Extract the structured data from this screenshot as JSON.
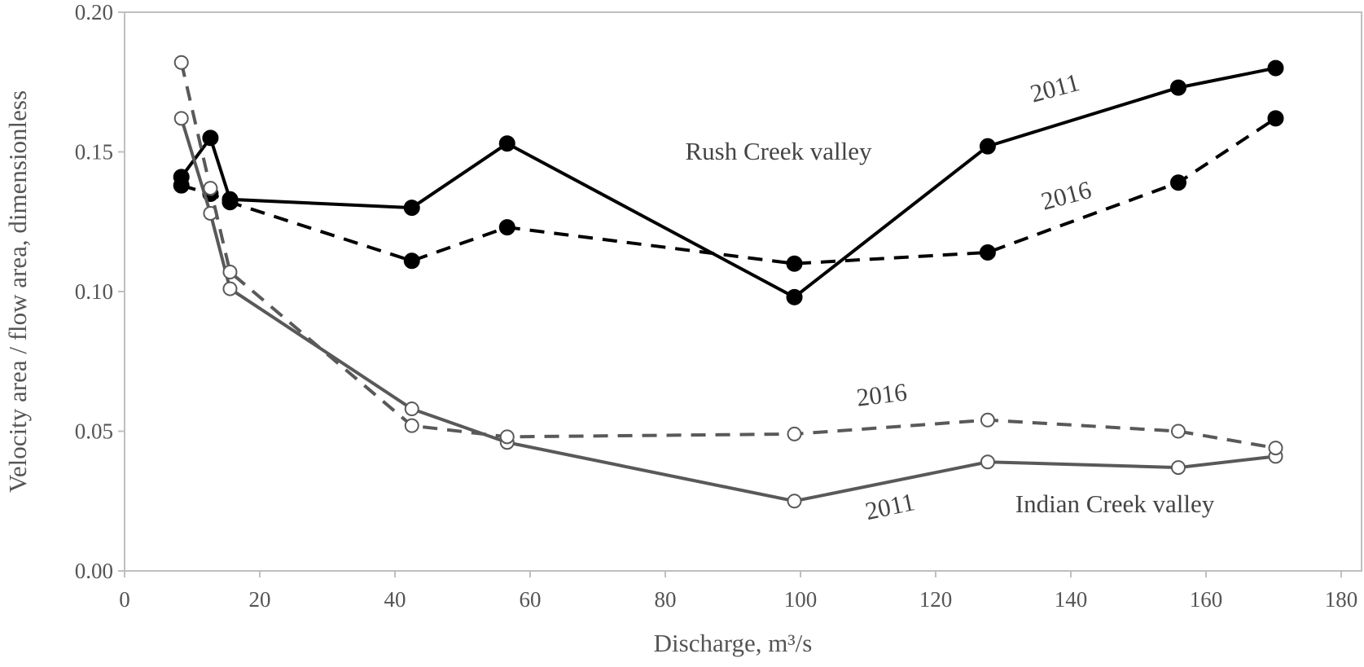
{
  "chart_data": {
    "type": "line",
    "x_label": "Discharge, m³/s",
    "y_label": "Velocity area / flow area, dimensionless",
    "x": [
      8.4,
      12.7,
      15.6,
      42.5,
      56.6,
      99.1,
      127.7,
      155.9,
      170.3
    ],
    "series": [
      {
        "color": "#000000",
        "dash": false,
        "marker": "filled",
        "values": [
          0.141,
          0.155,
          0.133,
          0.13,
          0.153,
          0.098,
          0.152,
          0.173,
          0.18
        ]
      },
      {
        "color": "#000000",
        "dash": true,
        "marker": "filled",
        "values": [
          0.138,
          0.135,
          0.132,
          0.111,
          0.123,
          0.11,
          0.114,
          0.139,
          0.162
        ]
      },
      {
        "color": "#595959",
        "dash": false,
        "marker": "open",
        "values": [
          0.162,
          0.128,
          0.101,
          0.058,
          0.046,
          0.025,
          0.039,
          0.037,
          0.041
        ]
      },
      {
        "color": "#595959",
        "dash": true,
        "marker": "open",
        "values": [
          0.182,
          0.137,
          0.107,
          0.052,
          0.048,
          0.049,
          0.054,
          0.05,
          0.044
        ]
      }
    ],
    "annotations": [
      "2011",
      "Rush Creek valley",
      "2016",
      "2016",
      "2011",
      "Indian Creek valley"
    ],
    "xlim": [
      0,
      180
    ],
    "ylim": [
      0,
      0.2
    ],
    "xticks": [
      0,
      20,
      40,
      60,
      80,
      100,
      120,
      140,
      160,
      180
    ],
    "yticks": [
      {
        "value": 0,
        "label": "0.00"
      },
      {
        "value": 0.05,
        "label": "0.05"
      },
      {
        "value": 0.1,
        "label": "0.10"
      },
      {
        "value": 0.15,
        "label": "0.15"
      },
      {
        "value": 0.2,
        "label": "0.20"
      }
    ],
    "grid": false
  }
}
